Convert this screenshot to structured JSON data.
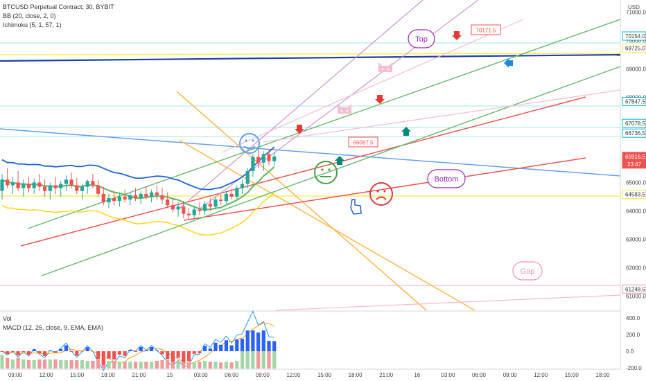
{
  "legend": {
    "symbol": "BTCUSD Perpetual Contract, 30, BYBIT",
    "bb": "BB (20, close, 2, 0)",
    "ichimoku": "Ichimoku (5, 1, 57, 1)",
    "vol": "Vol",
    "macd": "MACD (12, 26, close, 9, EMA, EMA)"
  },
  "currency": "USD",
  "chart_data": {
    "type": "candlestick",
    "title": "BTCUSD Perpetual Contract, 30, BYBIT",
    "price_range": [
      60500,
      71300
    ],
    "price_ticks": [
      71000.0,
      70000.0,
      69000.0,
      68000.0,
      67000.0,
      66000.0,
      65000.0,
      64000.0,
      63000.0,
      62000.0,
      61000.0
    ],
    "time_labels": [
      "09:00",
      "12:00",
      "15:00",
      "18:00",
      "21:00",
      "15",
      "03:00",
      "06:00",
      "09:00",
      "12:00",
      "15:00",
      "18:00",
      "21:00",
      "16",
      "03:00",
      "06:00",
      "09:00",
      "12:00",
      "15:00",
      "18:00"
    ],
    "price_tags": [
      {
        "value": 70154.0,
        "color": "#00bcd4"
      },
      {
        "value": 69725.0,
        "color": "#ffeb3b"
      },
      {
        "value": 67847.5,
        "color": "#00bcd4"
      },
      {
        "value": 67078.5,
        "color": "#00bcd4"
      },
      {
        "value": 66736.5,
        "color": "#00bcd4"
      },
      {
        "value": 65916.5,
        "color": "#ef5350",
        "sub": "23:47"
      },
      {
        "value": 64583.5,
        "color": "#ffeb3b"
      },
      {
        "value": 61248.5,
        "color": "#f48fb1"
      }
    ],
    "annotations": [
      {
        "text": "Top",
        "color": "#9c27b0"
      },
      {
        "text": "Bottom",
        "color": "#9c27b0"
      },
      {
        "text": "Gap",
        "color": "#f48fb1"
      },
      {
        "text": "70171.5",
        "color": "#ef5350"
      },
      {
        "text": "66087.5",
        "color": "#ef5350"
      }
    ],
    "candles": [
      {
        "o": 64700,
        "h": 65300,
        "l": 64400,
        "c": 65100
      },
      {
        "o": 65100,
        "h": 65500,
        "l": 64800,
        "c": 64900
      },
      {
        "o": 64900,
        "h": 65200,
        "l": 64600,
        "c": 65000
      },
      {
        "o": 65000,
        "h": 65400,
        "l": 64700,
        "c": 64800
      },
      {
        "o": 64800,
        "h": 65100,
        "l": 64500,
        "c": 64950
      },
      {
        "o": 64950,
        "h": 65200,
        "l": 64650,
        "c": 64800
      },
      {
        "o": 64800,
        "h": 65150,
        "l": 64600,
        "c": 65000
      },
      {
        "o": 65000,
        "h": 65300,
        "l": 64700,
        "c": 64850
      },
      {
        "o": 64850,
        "h": 65100,
        "l": 64500,
        "c": 64700
      },
      {
        "o": 64700,
        "h": 65000,
        "l": 64400,
        "c": 64900
      },
      {
        "o": 64900,
        "h": 65200,
        "l": 64600,
        "c": 64800
      },
      {
        "o": 64800,
        "h": 65050,
        "l": 64500,
        "c": 64950
      },
      {
        "o": 64950,
        "h": 65250,
        "l": 64700,
        "c": 65100
      },
      {
        "o": 65100,
        "h": 65350,
        "l": 64800,
        "c": 64900
      },
      {
        "o": 64900,
        "h": 65150,
        "l": 64600,
        "c": 64700
      },
      {
        "o": 64700,
        "h": 64950,
        "l": 64400,
        "c": 64850
      },
      {
        "o": 64850,
        "h": 65100,
        "l": 64600,
        "c": 65050
      },
      {
        "o": 65050,
        "h": 65300,
        "l": 64800,
        "c": 64900
      },
      {
        "o": 64900,
        "h": 65100,
        "l": 64500,
        "c": 64600
      },
      {
        "o": 64600,
        "h": 64850,
        "l": 64200,
        "c": 64300
      },
      {
        "o": 64300,
        "h": 64600,
        "l": 64100,
        "c": 64450
      },
      {
        "o": 64450,
        "h": 64700,
        "l": 64200,
        "c": 64350
      },
      {
        "o": 64350,
        "h": 64600,
        "l": 64150,
        "c": 64500
      },
      {
        "o": 64500,
        "h": 64750,
        "l": 64300,
        "c": 64400
      },
      {
        "o": 64400,
        "h": 64650,
        "l": 64200,
        "c": 64550
      },
      {
        "o": 64550,
        "h": 64800,
        "l": 64350,
        "c": 64450
      },
      {
        "o": 64450,
        "h": 64700,
        "l": 64250,
        "c": 64600
      },
      {
        "o": 64600,
        "h": 64850,
        "l": 64400,
        "c": 64500
      },
      {
        "o": 64500,
        "h": 64750,
        "l": 64300,
        "c": 64650
      },
      {
        "o": 64650,
        "h": 64900,
        "l": 64400,
        "c": 64550
      },
      {
        "o": 64550,
        "h": 64800,
        "l": 64250,
        "c": 64400
      },
      {
        "o": 64400,
        "h": 64650,
        "l": 64100,
        "c": 64200
      },
      {
        "o": 64200,
        "h": 64450,
        "l": 63950,
        "c": 64050
      },
      {
        "o": 64050,
        "h": 64300,
        "l": 63800,
        "c": 64150
      },
      {
        "o": 64150,
        "h": 64350,
        "l": 63750,
        "c": 63900
      },
      {
        "o": 63900,
        "h": 64100,
        "l": 63700,
        "c": 63850
      },
      {
        "o": 63850,
        "h": 64150,
        "l": 63750,
        "c": 64050
      },
      {
        "o": 64050,
        "h": 64300,
        "l": 63850,
        "c": 64000
      },
      {
        "o": 64000,
        "h": 64350,
        "l": 63850,
        "c": 64250
      },
      {
        "o": 64250,
        "h": 64450,
        "l": 64000,
        "c": 64150
      },
      {
        "o": 64150,
        "h": 64500,
        "l": 64050,
        "c": 64400
      },
      {
        "o": 64400,
        "h": 64600,
        "l": 64200,
        "c": 64350
      },
      {
        "o": 64350,
        "h": 64700,
        "l": 64250,
        "c": 64600
      },
      {
        "o": 64600,
        "h": 64800,
        "l": 64400,
        "c": 64500
      },
      {
        "o": 64500,
        "h": 64900,
        "l": 64400,
        "c": 64800
      },
      {
        "o": 64800,
        "h": 65100,
        "l": 64600,
        "c": 64950
      },
      {
        "o": 64950,
        "h": 65500,
        "l": 64800,
        "c": 65400
      },
      {
        "o": 65400,
        "h": 66000,
        "l": 65200,
        "c": 65900
      },
      {
        "o": 65900,
        "h": 66200,
        "l": 65500,
        "c": 65700
      },
      {
        "o": 65700,
        "h": 66100,
        "l": 65400,
        "c": 66000
      },
      {
        "o": 66000,
        "h": 66150,
        "l": 65600,
        "c": 65750
      },
      {
        "o": 65750,
        "h": 66087.5,
        "l": 65600,
        "c": 65916.5
      }
    ]
  }
}
